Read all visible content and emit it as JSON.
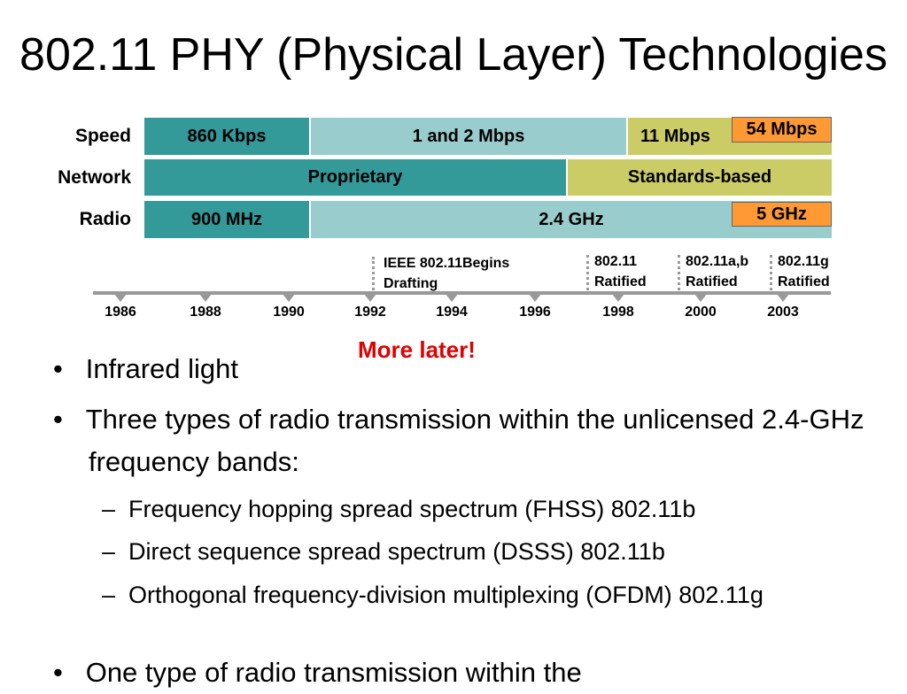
{
  "title": "802.11 PHY (Physical Layer) Technologies",
  "rows": [
    {
      "label": "Speed",
      "segments": [
        "860 Kbps",
        "1 and 2 Mbps",
        "11 Mbps"
      ],
      "overlay": "54 Mbps"
    },
    {
      "label": "Network",
      "segments": [
        "Proprietary",
        "Standards-based"
      ]
    },
    {
      "label": "Radio",
      "segments": [
        "900 MHz",
        "2.4 GHz"
      ],
      "overlay": "5 GHz"
    }
  ],
  "timeline": {
    "years": [
      "1986",
      "1988",
      "1990",
      "1992",
      "1994",
      "1996",
      "1998",
      "2000",
      "2003"
    ],
    "milestones": [
      {
        "line1": "IEEE 802.11Begins",
        "line2": "Drafting"
      },
      {
        "line1": "802.11",
        "line2": "Ratified"
      },
      {
        "line1": "802.11a,b",
        "line2": "Ratified"
      },
      {
        "line1": "802.11g",
        "line2": "Ratified"
      }
    ]
  },
  "note": "More later!",
  "bullets": [
    {
      "text": "Infrared light"
    },
    {
      "text": "Three types of radio transmission within the unlicensed 2.4-GHz frequency bands:",
      "subitems": [
        "Frequency hopping spread spectrum (FHSS) 802.11b",
        "Direct sequence spread spectrum (DSSS) 802.11b",
        "Orthogonal frequency-division multiplexing (OFDM) 802.11g"
      ]
    },
    {
      "text": "One type of radio transmission within the"
    }
  ]
}
